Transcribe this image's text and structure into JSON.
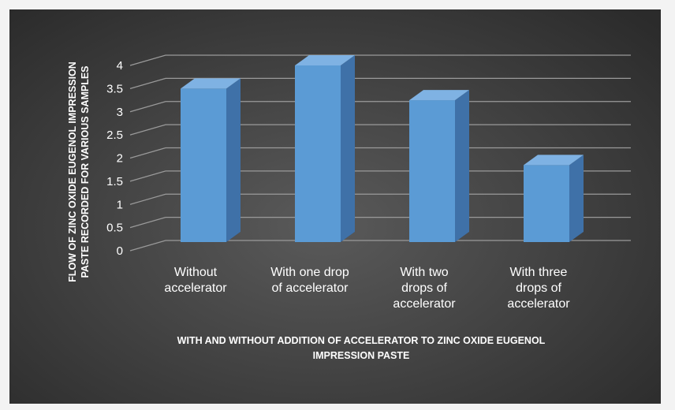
{
  "chart_data": {
    "type": "bar",
    "style": "3d-column",
    "categories": [
      [
        "Without",
        "accelerator"
      ],
      [
        "With one drop",
        "of accelerator"
      ],
      [
        "With two",
        "drops of",
        "accelerator"
      ],
      [
        "With three",
        "drops of",
        "accelerator"
      ]
    ],
    "values": [
      3.5,
      4.0,
      3.25,
      1.85
    ],
    "title": "",
    "xlabel": [
      "WITH AND WITHOUT ADDITION OF  ACCELERATOR TO ZINC OXIDE EUGENOL",
      "IMPRESSION PASTE"
    ],
    "ylabel": [
      "FLOW OF ZINC OXIDE EUGENOL IMPRESSION",
      "PASTE RECORDED FOR VARIOUS SAMPLES"
    ],
    "ylim": [
      0,
      4
    ],
    "yticks": [
      "0",
      "0.5",
      "1",
      "1.5",
      "2",
      "2.5",
      "3",
      "3.5",
      "4"
    ],
    "grid": true,
    "legend": "none",
    "colors": {
      "bar_front": "#5b9bd5",
      "bar_side": "#3f71a8",
      "bar_top": "#7fb2e3",
      "gridline": "#9a9a9a",
      "background": "#474747",
      "text": "#ffffff"
    }
  }
}
